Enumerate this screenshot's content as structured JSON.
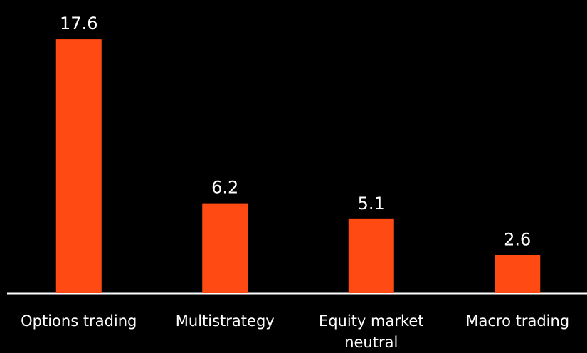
{
  "chart_data": {
    "type": "bar",
    "categories": [
      "Options trading",
      "Multistrategy",
      "Equity market neutral",
      "Macro trading"
    ],
    "values": [
      17.6,
      6.2,
      5.1,
      2.6
    ],
    "color": "#ff4a14",
    "ylim": [
      0,
      18
    ]
  }
}
